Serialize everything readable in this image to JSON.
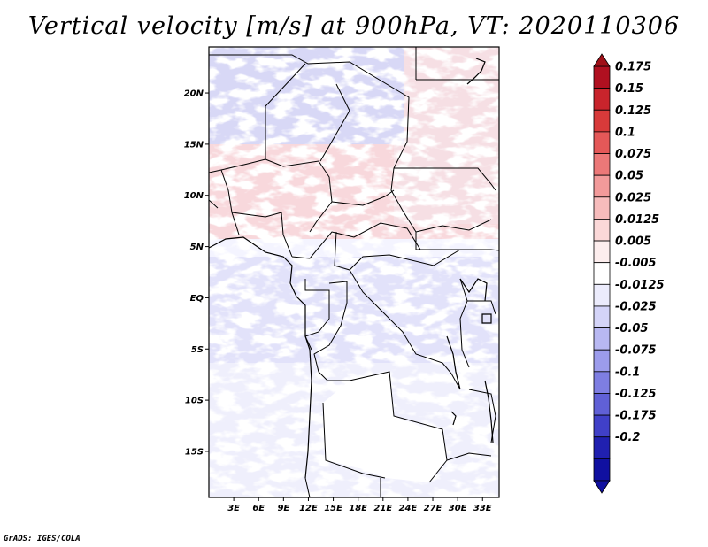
{
  "title": "Vertical velocity [m/s] at 900hPa, VT: 2020110306",
  "footer": "GrADS: IGES/COLA",
  "map": {
    "lat_range": [
      -19.5,
      24.5
    ],
    "lon_range": [
      0,
      35
    ],
    "lat_ticks": [
      {
        "value": 20,
        "label": "20N"
      },
      {
        "value": 15,
        "label": "15N"
      },
      {
        "value": 10,
        "label": "10N"
      },
      {
        "value": 5,
        "label": "5N"
      },
      {
        "value": 0,
        "label": "EQ"
      },
      {
        "value": -5,
        "label": "5S"
      },
      {
        "value": -10,
        "label": "10S"
      },
      {
        "value": -15,
        "label": "15S"
      }
    ],
    "lon_ticks": [
      {
        "value": 3,
        "label": "3E"
      },
      {
        "value": 6,
        "label": "6E"
      },
      {
        "value": 9,
        "label": "9E"
      },
      {
        "value": 12,
        "label": "12E"
      },
      {
        "value": 15,
        "label": "15E"
      },
      {
        "value": 18,
        "label": "18E"
      },
      {
        "value": 21,
        "label": "21E"
      },
      {
        "value": 24,
        "label": "24E"
      },
      {
        "value": 27,
        "label": "27E"
      },
      {
        "value": 30,
        "label": "30E"
      },
      {
        "value": 33,
        "label": "33E"
      }
    ]
  },
  "colorbar": {
    "levels": [
      {
        "label": "0.175",
        "color": "#b01020"
      },
      {
        "label": "0.15",
        "color": "#c8242c"
      },
      {
        "label": "0.125",
        "color": "#d83a3a"
      },
      {
        "label": "0.1",
        "color": "#e45858"
      },
      {
        "label": "0.075",
        "color": "#ec7878"
      },
      {
        "label": "0.05",
        "color": "#f29a9a"
      },
      {
        "label": "0.025",
        "color": "#f7bcbc"
      },
      {
        "label": "0.0125",
        "color": "#fbd8d8"
      },
      {
        "label": "0.005",
        "color": "#fdeeee"
      },
      {
        "label": "-0.005",
        "color": "#ffffff"
      },
      {
        "label": "-0.0125",
        "color": "#ececfc"
      },
      {
        "label": "-0.025",
        "color": "#d4d4f8"
      },
      {
        "label": "-0.05",
        "color": "#b8b8f2"
      },
      {
        "label": "-0.075",
        "color": "#9c9cec"
      },
      {
        "label": "-0.1",
        "color": "#7e7ee2"
      },
      {
        "label": "-0.125",
        "color": "#6060d6"
      },
      {
        "label": "-0.175",
        "color": "#4040c8"
      },
      {
        "label": "-0.2",
        "color": "#2020b0"
      }
    ],
    "top_color": "#a01018",
    "bottom_color": "#1010a0"
  }
}
